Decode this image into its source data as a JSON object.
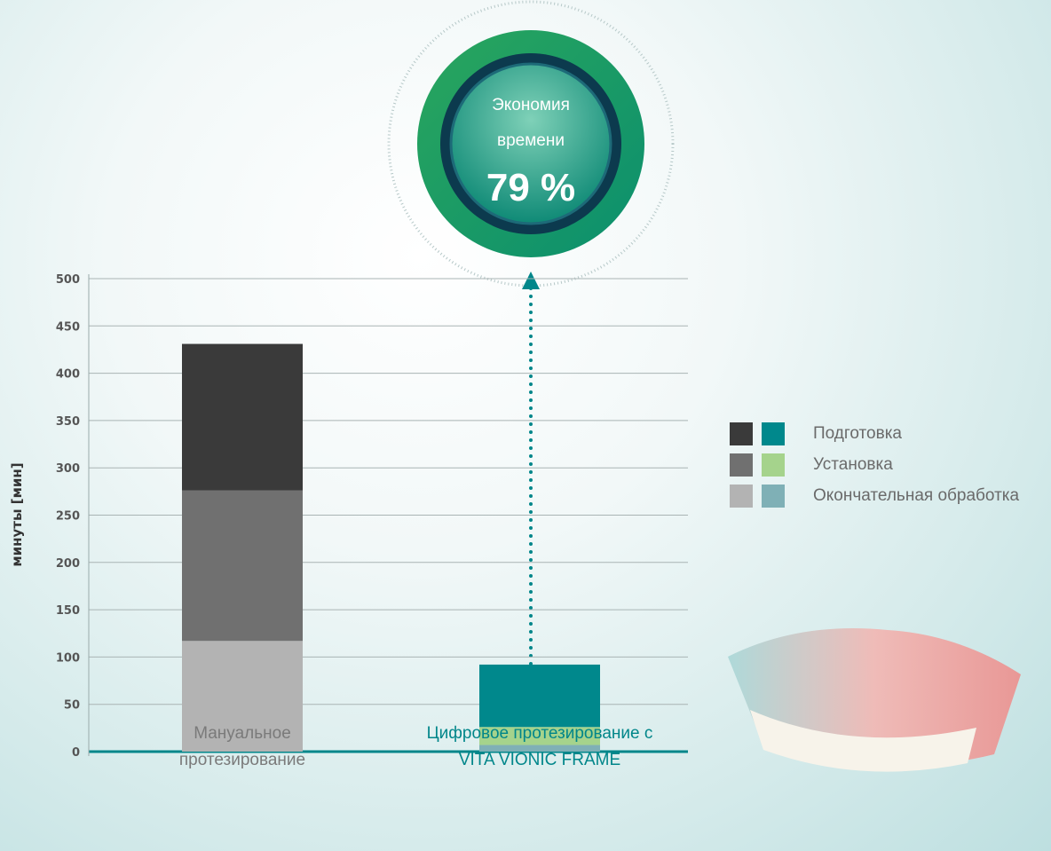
{
  "chart_data": {
    "type": "stacked_bar",
    "annotation": {
      "text": "Экономия времени",
      "value": "79 %"
    },
    "y_label": "минуты [мин]",
    "categories": [
      "Мануальное протезирование",
      "Цифровое протезирование с VITA VIONIC FRAME"
    ],
    "category_colors": [
      "#7a7a7a",
      "#00868a"
    ],
    "series": [
      {
        "name": "Окончательная обработка",
        "colors": [
          "#b3b3b3",
          "#7fb0b6"
        ],
        "values": [
          117,
          7
        ]
      },
      {
        "name": "Установка",
        "colors": [
          "#707070",
          "#a5d38c"
        ],
        "values": [
          159,
          19
        ]
      },
      {
        "name": "Подготовка",
        "colors": [
          "#3a3a3a",
          "#00888c"
        ],
        "values": [
          155,
          66
        ]
      }
    ],
    "legend_order": [
      2,
      1,
      0
    ],
    "ylim": [
      0,
      500
    ],
    "yticks": [
      0,
      50,
      100,
      150,
      200,
      250,
      300,
      350,
      400,
      450,
      500
    ],
    "grid": true
  }
}
